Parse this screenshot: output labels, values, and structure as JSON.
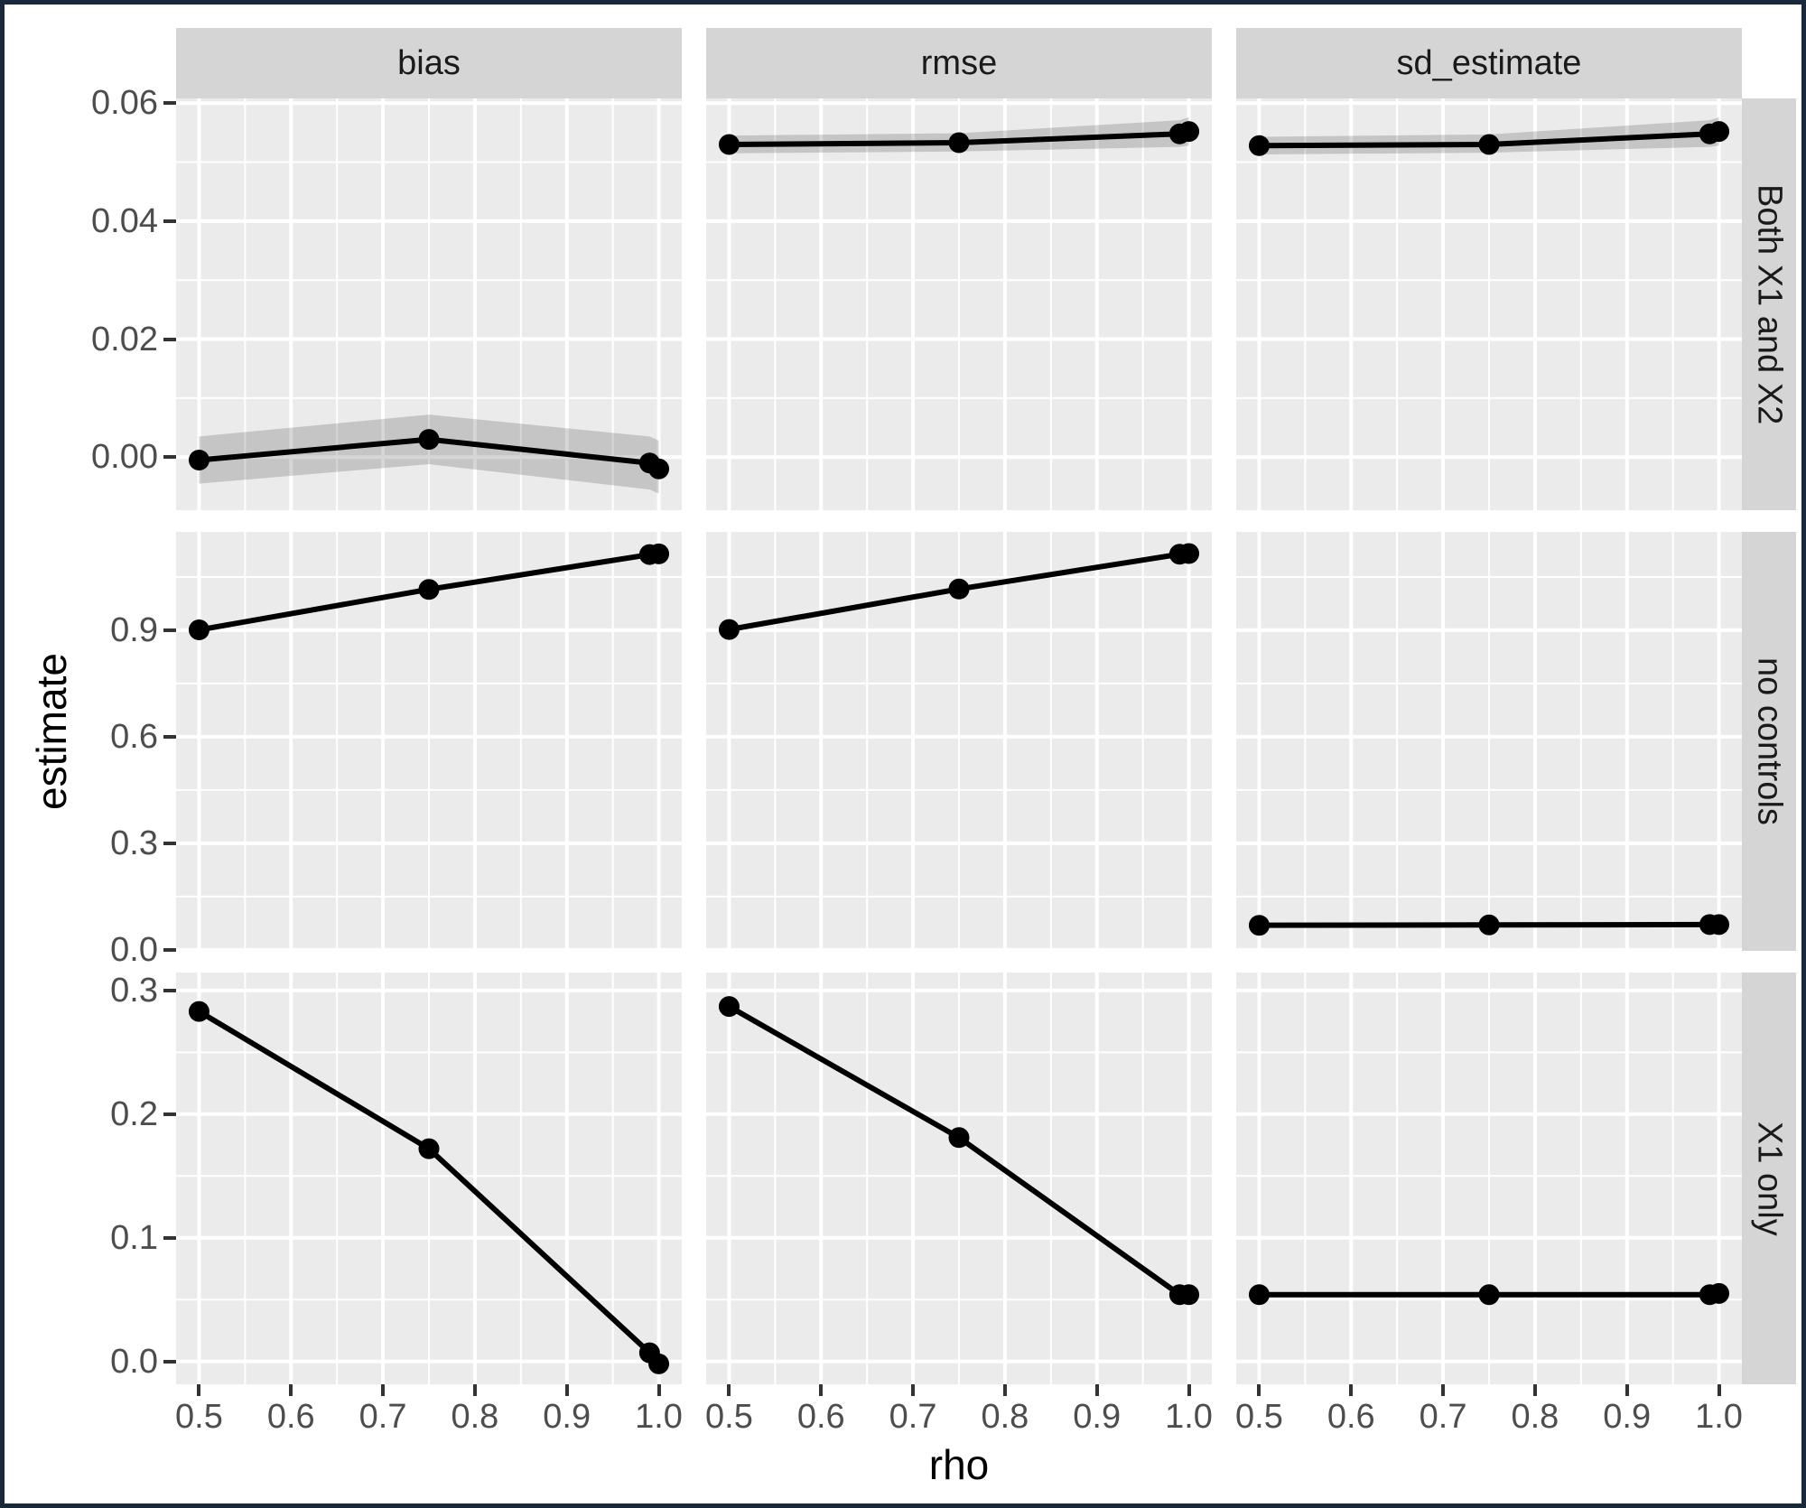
{
  "chart_data": {
    "type": "line",
    "title": "",
    "xlabel": "rho",
    "ylabel": "estimate",
    "legend": "none",
    "grid": "on",
    "facet_columns": [
      "bias",
      "rmse",
      "sd_estimate"
    ],
    "facet_rows": [
      "Both X1 and X2",
      "no controls",
      "X1 only"
    ],
    "x": [
      0.5,
      0.75,
      0.99,
      1.0
    ],
    "x_ticks": [
      0.5,
      0.6,
      0.7,
      0.8,
      0.9,
      1.0
    ],
    "x_tick_labels": [
      "0.5",
      "0.6",
      "0.7",
      "0.8",
      "0.9",
      "1.0"
    ],
    "x_minor": [
      0.55,
      0.65,
      0.75,
      0.85,
      0.95
    ],
    "x_range": [
      0.475,
      1.025
    ],
    "rows": [
      {
        "label": "Both X1 and X2",
        "y_range": [
          -0.009,
          0.0608
        ],
        "y_ticks": [
          0.0,
          0.02,
          0.04,
          0.06
        ],
        "y_tick_labels": [
          "0.00",
          "0.02",
          "0.04",
          "0.06"
        ],
        "y_minor": [
          0.01,
          0.03,
          0.05
        ],
        "panels": [
          {
            "col": "bias",
            "y": [
              -0.0005,
              0.003,
              -0.001,
              -0.002
            ],
            "lo": [
              -0.0045,
              -0.0012,
              -0.0055,
              -0.0062
            ],
            "hi": [
              0.0035,
              0.0072,
              0.0035,
              0.0028
            ]
          },
          {
            "col": "rmse",
            "y": [
              0.053,
              0.0533,
              0.0548,
              0.0552
            ],
            "lo": [
              0.0515,
              0.0518,
              0.0526,
              0.0528
            ],
            "hi": [
              0.0545,
              0.0549,
              0.0571,
              0.0576
            ]
          },
          {
            "col": "sd_estimate",
            "y": [
              0.0528,
              0.053,
              0.0548,
              0.0552
            ],
            "lo": [
              0.0513,
              0.0516,
              0.0526,
              0.0528
            ],
            "hi": [
              0.0543,
              0.0547,
              0.0571,
              0.0576
            ]
          }
        ]
      },
      {
        "label": "no controls",
        "y_range": [
          -0.003,
          1.177
        ],
        "y_ticks": [
          0.0,
          0.3,
          0.6,
          0.9
        ],
        "y_tick_labels": [
          "0.0",
          "0.3",
          "0.6",
          "0.9"
        ],
        "y_minor": [
          0.15,
          0.45,
          0.75,
          1.05
        ],
        "panels": [
          {
            "col": "bias",
            "y": [
              0.901,
              1.015,
              1.113,
              1.115
            ]
          },
          {
            "col": "rmse",
            "y": [
              0.902,
              1.016,
              1.114,
              1.116
            ]
          },
          {
            "col": "sd_estimate",
            "y": [
              0.069,
              0.07,
              0.071,
              0.071
            ]
          }
        ]
      },
      {
        "label": "X1 only",
        "y_range": [
          -0.0185,
          0.3145
        ],
        "y_ticks": [
          0.0,
          0.1,
          0.2,
          0.3
        ],
        "y_tick_labels": [
          "0.0",
          "0.1",
          "0.2",
          "0.3"
        ],
        "y_minor": [
          0.05,
          0.15,
          0.25
        ],
        "panels": [
          {
            "col": "bias",
            "y": [
              0.283,
              0.172,
              0.007,
              -0.002
            ]
          },
          {
            "col": "rmse",
            "y": [
              0.287,
              0.181,
              0.054,
              0.054
            ]
          },
          {
            "col": "sd_estimate",
            "y": [
              0.054,
              0.054,
              0.054,
              0.055
            ]
          }
        ]
      }
    ]
  },
  "colors": {
    "border": "#17293a",
    "panel_bg": "#ebebeb",
    "strip_bg": "#d5d5d5",
    "gridline": "#ffffff",
    "line": "#000000",
    "point": "#000000",
    "ribbon": "rgba(0,0,0,0.16)",
    "tick_label": "#4d4d4d",
    "tick_mark": "#333333",
    "axis_title": "#000000",
    "strip_text": "#1a1a1a"
  }
}
